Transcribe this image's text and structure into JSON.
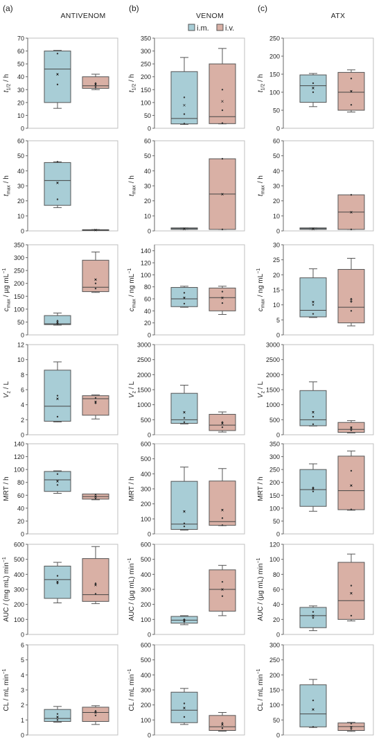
{
  "figure": {
    "columns": [
      {
        "letter": "(a)",
        "title": "ANTIVENOM"
      },
      {
        "letter": "(b)",
        "title": "VENOM"
      },
      {
        "letter": "(c)",
        "title": "ATX"
      }
    ],
    "legend": [
      {
        "label": "i.m.",
        "color": "#a8cdd6"
      },
      {
        "label": "i.v.",
        "color": "#d9b0a5"
      }
    ]
  },
  "rows": [
    {
      "ylabel": "t1/2 / h",
      "ylabel_parts": {
        "main": "t",
        "sub": "1/2",
        "rest": " / h"
      }
    },
    {
      "ylabel": "tmax / h",
      "ylabel_parts": {
        "main": "t",
        "sub": "max",
        "rest": " / h"
      }
    },
    {
      "ylabel": "cmax / µg mL−1",
      "ylabel_parts": {
        "main": "c",
        "sub": "max",
        "rest": " / µg mL",
        "sup": "−1"
      },
      "ylabel_alt": "cmax / ng mL−1",
      "ylabel_parts_alt": {
        "main": "c",
        "sub": "max",
        "rest": " / ng mL",
        "sup": "−1"
      }
    },
    {
      "ylabel": "Vz / L",
      "ylabel_parts": {
        "main": "V",
        "sub": "z",
        "rest": " / L"
      }
    },
    {
      "ylabel": "MRT / h",
      "ylabel_parts": {
        "main": "MRT / h"
      }
    },
    {
      "ylabel": "AUC / (mg mL−1) min",
      "ylabel_parts": {
        "main": "AUC / (mg mL",
        "sup": "−1",
        "rest": ") min"
      },
      "ylabel_alt": "AUC / (µg mL−1) min",
      "ylabel_parts_alt": {
        "main": "AUC / (µg mL",
        "sup": "−1",
        "rest": ") min"
      }
    },
    {
      "ylabel": "CL / mL min−1",
      "ylabel_parts": {
        "main": "CL / mL min",
        "sup": "−1"
      }
    }
  ],
  "chart_data": [
    {
      "type": "box",
      "column": "ANTIVENOM",
      "ylabel": "t1/2 / h",
      "ylim": [
        0,
        70
      ],
      "ticks": [
        0,
        10,
        20,
        30,
        40,
        50,
        60,
        70
      ],
      "series": [
        {
          "name": "i.m.",
          "whisker_low": 15.5,
          "q1": 20,
          "median": 46,
          "q3": 60,
          "whisker_high": 60.5,
          "mean": 42,
          "points": [
            58,
            42,
            34
          ]
        },
        {
          "name": "i.v.",
          "whisker_low": 30,
          "q1": 31,
          "median": 33,
          "q3": 40,
          "whisker_high": 42,
          "mean": 34,
          "points": [
            35,
            34,
            32
          ]
        }
      ]
    },
    {
      "type": "box",
      "column": "VENOM",
      "ylabel": "t1/2 / h",
      "ylim": [
        0,
        350
      ],
      "ticks": [
        0,
        50,
        100,
        150,
        200,
        250,
        300,
        350
      ],
      "series": [
        {
          "name": "i.m.",
          "whisker_low": 15,
          "q1": 17,
          "median": 38,
          "q3": 220,
          "whisker_high": 275,
          "mean": 90,
          "points": [
            120,
            55,
            18
          ]
        },
        {
          "name": "i.v.",
          "whisker_low": 17,
          "q1": 18,
          "median": 45,
          "q3": 250,
          "whisker_high": 310,
          "mean": 105,
          "points": [
            150,
            70,
            20
          ]
        }
      ]
    },
    {
      "type": "box",
      "column": "ATX",
      "ylabel": "t1/2 / h",
      "ylim": [
        0,
        250
      ],
      "ticks": [
        0,
        50,
        100,
        150,
        200,
        250
      ],
      "series": [
        {
          "name": "i.m.",
          "whisker_low": 60,
          "q1": 72,
          "median": 118,
          "q3": 148,
          "whisker_high": 152,
          "mean": 112,
          "points": [
            125,
            112,
            100
          ]
        },
        {
          "name": "i.v.",
          "whisker_low": 45,
          "q1": 50,
          "median": 100,
          "q3": 155,
          "whisker_high": 162,
          "mean": 103,
          "points": [
            138,
            103,
            65
          ]
        }
      ]
    },
    {
      "type": "box",
      "column": "ANTIVENOM",
      "ylabel": "tmax / h",
      "ylim": [
        0,
        60
      ],
      "ticks": [
        0,
        10,
        20,
        30,
        40,
        50,
        60
      ],
      "series": [
        {
          "name": "i.m.",
          "whisker_low": 15.5,
          "q1": 17,
          "median": 33.5,
          "q3": 45.5,
          "whisker_high": 46,
          "mean": 32,
          "points": [
            46,
            32,
            21
          ]
        },
        {
          "name": "i.v.",
          "whisker_low": 0.4,
          "q1": 0.5,
          "median": 0.6,
          "q3": 0.8,
          "whisker_high": 0.9,
          "mean": 0.6,
          "points": [
            0.6
          ]
        }
      ]
    },
    {
      "type": "box",
      "column": "VENOM",
      "ylabel": "tmax / h",
      "ylim": [
        0,
        60
      ],
      "ticks": [
        0,
        10,
        20,
        30,
        40,
        50,
        60
      ],
      "series": [
        {
          "name": "i.m.",
          "whisker_low": 1,
          "q1": 1,
          "median": 1.5,
          "q3": 2,
          "whisker_high": 2,
          "mean": 1.5,
          "points": [
            1.5
          ]
        },
        {
          "name": "i.v.",
          "whisker_low": 1,
          "q1": 1,
          "median": 24.5,
          "q3": 48,
          "whisker_high": 48,
          "mean": 24.5,
          "points": [
            48,
            24.5,
            1
          ]
        }
      ]
    },
    {
      "type": "box",
      "column": "ATX",
      "ylabel": "tmax / h",
      "ylim": [
        0,
        60
      ],
      "ticks": [
        0,
        10,
        20,
        30,
        40,
        50,
        60
      ],
      "series": [
        {
          "name": "i.m.",
          "whisker_low": 1,
          "q1": 1,
          "median": 1.5,
          "q3": 2,
          "whisker_high": 2,
          "mean": 1.5,
          "points": [
            1.5
          ]
        },
        {
          "name": "i.v.",
          "whisker_low": 1,
          "q1": 1,
          "median": 12.5,
          "q3": 24,
          "whisker_high": 24,
          "mean": 12.5,
          "points": [
            24,
            12.5,
            1
          ]
        }
      ]
    },
    {
      "type": "box",
      "column": "ANTIVENOM",
      "ylabel": "cmax / µg mL−1",
      "ylim": [
        0,
        350
      ],
      "ticks": [
        0,
        50,
        100,
        150,
        200,
        250,
        300,
        350
      ],
      "series": [
        {
          "name": "i.m.",
          "whisker_low": 38,
          "q1": 40,
          "median": 43,
          "q3": 75,
          "whisker_high": 85,
          "mean": 50,
          "points": [
            55,
            47,
            42
          ]
        },
        {
          "name": "i.v.",
          "whisker_low": 165,
          "q1": 168,
          "median": 185,
          "q3": 290,
          "whisker_high": 322,
          "mean": 215,
          "points": [
            200,
            215,
            180
          ]
        }
      ]
    },
    {
      "type": "box",
      "column": "VENOM",
      "ylabel": "cmax / ng mL−1",
      "ylim": [
        0,
        150
      ],
      "ticks": [
        0,
        20,
        40,
        60,
        80,
        100,
        120,
        140
      ],
      "series": [
        {
          "name": "i.m.",
          "whisker_low": 46,
          "q1": 47,
          "median": 60,
          "q3": 79,
          "whisker_high": 81,
          "mean": 62,
          "points": [
            70,
            62,
            52
          ]
        },
        {
          "name": "i.v.",
          "whisker_low": 34,
          "q1": 40,
          "median": 62,
          "q3": 78,
          "whisker_high": 81,
          "mean": 62,
          "points": [
            72,
            62,
            53
          ]
        }
      ]
    },
    {
      "type": "box",
      "column": "ATX",
      "ylabel": "cmax / ng mL−1",
      "ylim": [
        0,
        30
      ],
      "ticks": [
        0,
        5,
        10,
        15,
        20,
        25,
        30
      ],
      "series": [
        {
          "name": "i.m.",
          "whisker_low": 5.8,
          "q1": 6,
          "median": 8.2,
          "q3": 19,
          "whisker_high": 22,
          "mean": 11,
          "points": [
            11,
            10,
            7
          ]
        },
        {
          "name": "i.v.",
          "whisker_low": 3,
          "q1": 4,
          "median": 9.2,
          "q3": 21.8,
          "whisker_high": 25.5,
          "mean": 11.5,
          "points": [
            12,
            11,
            8
          ]
        }
      ]
    },
    {
      "type": "box",
      "column": "ANTIVENOM",
      "ylabel": "Vz / L",
      "ylim": [
        0,
        12
      ],
      "ticks": [
        0,
        2,
        4,
        6,
        8,
        10,
        12
      ],
      "series": [
        {
          "name": "i.m.",
          "whisker_low": 1.7,
          "q1": 1.8,
          "median": 3.8,
          "q3": 8.6,
          "whisker_high": 9.7,
          "mean": 4.8,
          "points": [
            5.2,
            4.8,
            2.4
          ]
        },
        {
          "name": "i.v.",
          "whisker_low": 2.1,
          "q1": 2.6,
          "median": 4.8,
          "q3": 5.2,
          "whisker_high": 5.3,
          "mean": 4.4,
          "points": [
            4.9,
            4.4,
            4.2
          ]
        }
      ]
    },
    {
      "type": "box",
      "column": "VENOM",
      "ylabel": "Vz / L",
      "ylim": [
        0,
        3000
      ],
      "ticks": [
        0,
        500,
        1000,
        1500,
        2000,
        2500,
        3000
      ],
      "series": [
        {
          "name": "i.m.",
          "whisker_low": 360,
          "q1": 380,
          "median": 500,
          "q3": 1380,
          "whisker_high": 1650,
          "mean": 750,
          "points": [
            750,
            560,
            420
          ]
        },
        {
          "name": "i.v.",
          "whisker_low": 90,
          "q1": 140,
          "median": 320,
          "q3": 680,
          "whisker_high": 760,
          "mean": 380,
          "points": [
            420,
            380,
            250
          ]
        }
      ]
    },
    {
      "type": "box",
      "column": "ATX",
      "ylabel": "Vz / L",
      "ylim": [
        0,
        3000
      ],
      "ticks": [
        0,
        500,
        1000,
        1500,
        2000,
        2500,
        3000
      ],
      "series": [
        {
          "name": "i.m.",
          "whisker_low": 290,
          "q1": 300,
          "median": 500,
          "q3": 1470,
          "whisker_high": 1760,
          "mean": 750,
          "points": [
            760,
            600,
            350
          ]
        },
        {
          "name": "i.v.",
          "whisker_low": 60,
          "q1": 80,
          "median": 180,
          "q3": 410,
          "whisker_high": 470,
          "mean": 230,
          "points": [
            250,
            220,
            150
          ]
        }
      ]
    },
    {
      "type": "box",
      "column": "ANTIVENOM",
      "ylabel": "MRT / h",
      "ylim": [
        0,
        140
      ],
      "ticks": [
        0,
        20,
        40,
        60,
        80,
        100,
        120,
        140
      ],
      "series": [
        {
          "name": "i.m.",
          "whisker_low": 63,
          "q1": 66,
          "median": 84,
          "q3": 97,
          "whisker_high": 98,
          "mean": 82,
          "points": [
            93,
            82,
            76
          ]
        },
        {
          "name": "i.v.",
          "whisker_low": 53,
          "q1": 54,
          "median": 58,
          "q3": 62,
          "whisker_high": 62,
          "mean": 58,
          "points": [
            61,
            58,
            55
          ]
        }
      ]
    },
    {
      "type": "box",
      "column": "VENOM",
      "ylabel": "MRT / h",
      "ylim": [
        0,
        600
      ],
      "ticks": [
        0,
        100,
        200,
        300,
        400,
        500,
        600
      ],
      "series": [
        {
          "name": "i.m.",
          "whisker_low": 25,
          "q1": 30,
          "median": 65,
          "q3": 350,
          "whisker_high": 445,
          "mean": 150,
          "points": [
            150,
            70,
            50
          ]
        },
        {
          "name": "i.v.",
          "whisker_low": 55,
          "q1": 57,
          "median": 82,
          "q3": 352,
          "whisker_high": 435,
          "mean": 160,
          "points": [
            160,
            105,
            58
          ]
        }
      ]
    },
    {
      "type": "box",
      "column": "ATX",
      "ylabel": "MRT / h",
      "ylim": [
        0,
        350
      ],
      "ticks": [
        0,
        50,
        100,
        150,
        200,
        250,
        300,
        350
      ],
      "series": [
        {
          "name": "i.m.",
          "whisker_low": 88,
          "q1": 107,
          "median": 172,
          "q3": 250,
          "whisker_high": 272,
          "mean": 175,
          "points": [
            180,
            175,
            165
          ]
        },
        {
          "name": "i.v.",
          "whisker_low": 92,
          "q1": 94,
          "median": 168,
          "q3": 302,
          "whisker_high": 322,
          "mean": 188,
          "points": [
            245,
            188,
            95
          ]
        }
      ]
    },
    {
      "type": "box",
      "column": "ANTIVENOM",
      "ylabel": "AUC / (mg mL−1) min",
      "ylim": [
        0,
        600
      ],
      "ticks": [
        0,
        100,
        200,
        300,
        400,
        500,
        600
      ],
      "series": [
        {
          "name": "i.m.",
          "whisker_low": 210,
          "q1": 240,
          "median": 365,
          "q3": 455,
          "whisker_high": 480,
          "mean": 350,
          "points": [
            390,
            350,
            340
          ]
        },
        {
          "name": "i.v.",
          "whisker_low": 205,
          "q1": 220,
          "median": 265,
          "q3": 505,
          "whisker_high": 585,
          "mean": 330,
          "points": [
            340,
            330,
            270
          ]
        }
      ]
    },
    {
      "type": "box",
      "column": "VENOM",
      "ylabel": "AUC / (µg mL−1) min",
      "ylim": [
        0,
        600
      ],
      "ticks": [
        0,
        100,
        200,
        300,
        400,
        500,
        600
      ],
      "series": [
        {
          "name": "i.m.",
          "whisker_low": 65,
          "q1": 75,
          "median": 95,
          "q3": 120,
          "whisker_high": 125,
          "mean": 95,
          "points": [
            100,
            95,
            85
          ]
        },
        {
          "name": "i.v.",
          "whisker_low": 125,
          "q1": 155,
          "median": 300,
          "q3": 430,
          "whisker_high": 460,
          "mean": 300,
          "points": [
            350,
            300,
            255
          ]
        }
      ]
    },
    {
      "type": "box",
      "column": "ATX",
      "ylabel": "AUC / (µg mL−1) min",
      "ylim": [
        0,
        120
      ],
      "ticks": [
        0,
        20,
        40,
        60,
        80,
        100,
        120
      ],
      "series": [
        {
          "name": "i.m.",
          "whisker_low": 5,
          "q1": 9,
          "median": 25,
          "q3": 36,
          "whisker_high": 38,
          "mean": 25,
          "points": [
            30,
            25,
            22
          ]
        },
        {
          "name": "i.v.",
          "whisker_low": 18,
          "q1": 20,
          "median": 45,
          "q3": 96,
          "whisker_high": 107,
          "mean": 55,
          "points": [
            65,
            55,
            25
          ]
        }
      ]
    },
    {
      "type": "box",
      "column": "ANTIVENOM",
      "ylabel": "CL / mL min−1",
      "ylim": [
        0,
        6
      ],
      "ticks": [
        0,
        1,
        2,
        3,
        4,
        5,
        6
      ],
      "series": [
        {
          "name": "i.m.",
          "whisker_low": 0.85,
          "q1": 0.9,
          "median": 1.1,
          "q3": 1.7,
          "whisker_high": 1.9,
          "mean": 1.2,
          "points": [
            1.4,
            1.2,
            1.0
          ]
        },
        {
          "name": "i.v.",
          "whisker_low": 0.7,
          "q1": 0.9,
          "median": 1.5,
          "q3": 1.85,
          "whisker_high": 1.95,
          "mean": 1.5,
          "points": [
            1.6,
            1.5,
            1.3
          ]
        }
      ]
    },
    {
      "type": "box",
      "column": "VENOM",
      "ylabel": "CL / mL min−1",
      "ylim": [
        0,
        600
      ],
      "ticks": [
        0,
        100,
        200,
        300,
        400,
        500,
        600
      ],
      "series": [
        {
          "name": "i.m.",
          "whisker_low": 70,
          "q1": 82,
          "median": 165,
          "q3": 285,
          "whisker_high": 310,
          "mean": 180,
          "points": [
            210,
            180,
            120
          ]
        },
        {
          "name": "i.v.",
          "whisker_low": 25,
          "q1": 30,
          "median": 55,
          "q3": 130,
          "whisker_high": 150,
          "mean": 70,
          "points": [
            80,
            70,
            45
          ]
        }
      ]
    },
    {
      "type": "box",
      "column": "ATX",
      "ylabel": "CL / mL min−1",
      "ylim": [
        0,
        300
      ],
      "ticks": [
        0,
        50,
        100,
        150,
        200,
        250,
        300
      ],
      "series": [
        {
          "name": "i.m.",
          "whisker_low": 25,
          "q1": 27,
          "median": 70,
          "q3": 167,
          "whisker_high": 185,
          "mean": 85,
          "points": [
            115,
            85,
            27
          ]
        },
        {
          "name": "i.v.",
          "whisker_low": 12,
          "q1": 15,
          "median": 28,
          "q3": 40,
          "whisker_high": 42,
          "mean": 27,
          "points": [
            38,
            27,
            20
          ]
        }
      ]
    }
  ]
}
